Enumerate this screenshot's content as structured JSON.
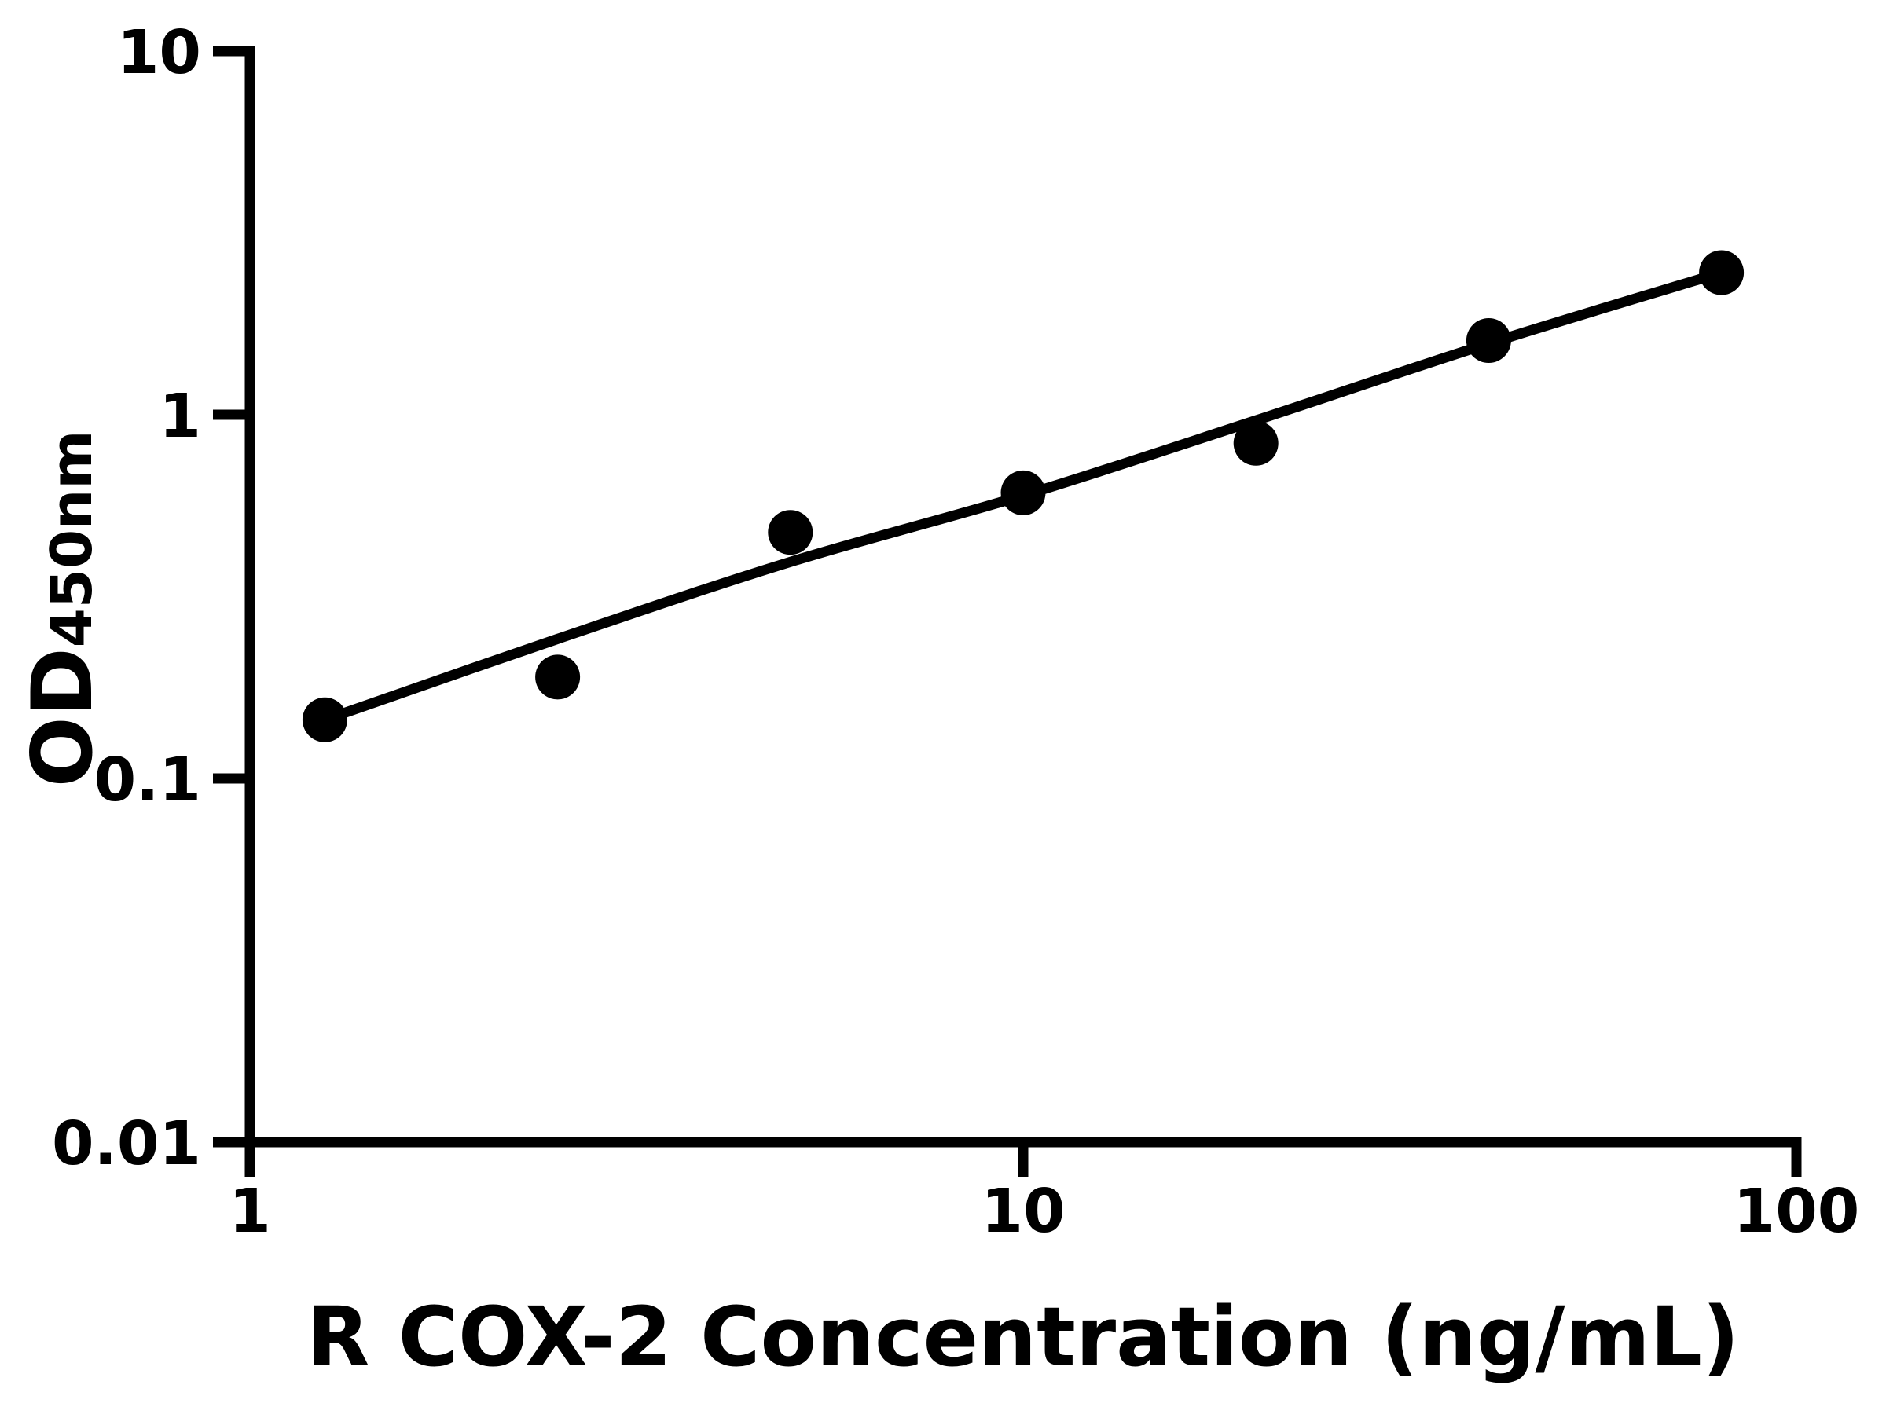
{
  "colors": {
    "foreground": "#000000",
    "background": "#ffffff"
  },
  "chart_data": {
    "type": "scatter",
    "title": "",
    "xlabel": "R COX-2 Concentration (ng/mL)",
    "ylabel": "OD450nm",
    "ylabel_main": "OD",
    "ylabel_sub": "450nm",
    "x_scale": "log",
    "y_scale": "log",
    "xlim": [
      1,
      100
    ],
    "ylim": [
      0.01,
      10
    ],
    "grid": false,
    "legend": false,
    "x_tick_values": [
      1,
      10,
      100
    ],
    "x_tick_labels": [
      "1",
      "10",
      "100"
    ],
    "y_tick_values": [
      0.01,
      0.1,
      1,
      10
    ],
    "y_tick_labels": [
      "0.01",
      "0.1",
      "1",
      "10"
    ],
    "marker": {
      "shape": "circle",
      "color": "#000000"
    },
    "line_color": "#000000",
    "points": [
      {
        "x": 1.25,
        "y": 0.145
      },
      {
        "x": 2.5,
        "y": 0.19
      },
      {
        "x": 5,
        "y": 0.475
      },
      {
        "x": 10,
        "y": 0.61
      },
      {
        "x": 20,
        "y": 0.835
      },
      {
        "x": 40,
        "y": 1.6
      },
      {
        "x": 80,
        "y": 2.46
      }
    ],
    "fit_curve": [
      [
        1.25,
        0.145
      ],
      [
        2.5,
        0.242
      ],
      [
        5,
        0.394
      ],
      [
        10,
        0.6
      ],
      [
        20,
        0.965
      ],
      [
        40,
        1.57
      ],
      [
        80,
        2.46
      ]
    ]
  }
}
